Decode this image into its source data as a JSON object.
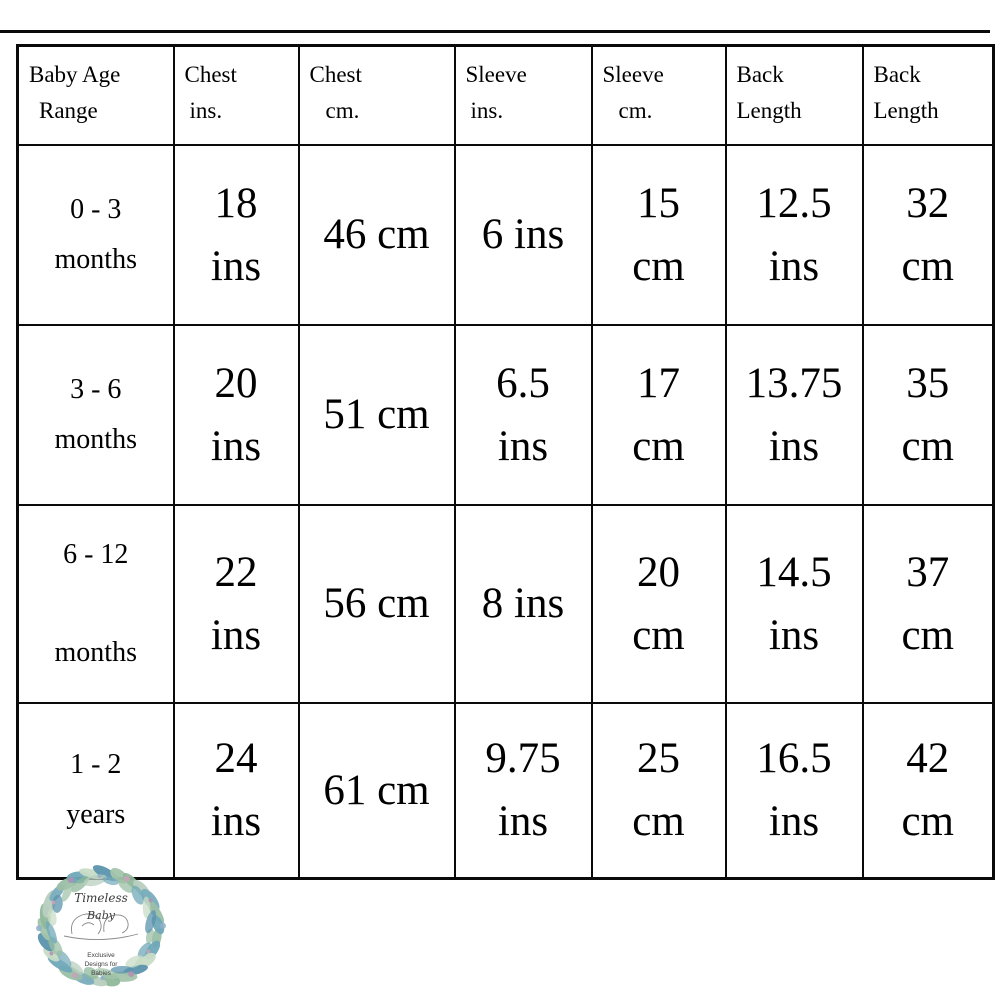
{
  "table": {
    "headers": [
      {
        "line1": "Baby Age",
        "line2": "Range"
      },
      {
        "line1": "Chest",
        "line2": "ins."
      },
      {
        "line1": "Chest",
        "line2": "cm."
      },
      {
        "line1": "Sleeve",
        "line2": "ins."
      },
      {
        "line1": "Sleeve",
        "line2": "cm."
      },
      {
        "line1": "Back",
        "line2": "Length"
      },
      {
        "line1": "Back",
        "line2": "Length"
      }
    ],
    "rows": [
      {
        "cells": [
          "0 - 3\nmonths",
          "18\nins",
          "46 cm",
          "6 ins",
          "15\ncm",
          "12.5\nins",
          "32\ncm"
        ]
      },
      {
        "cells": [
          "3 - 6\nmonths",
          "20\nins",
          "51 cm",
          "6.5\nins",
          "17\ncm",
          "13.75\nins",
          "35\ncm"
        ]
      },
      {
        "cells": [
          "6 - 12\nmonths",
          "22\nins",
          "56 cm",
          "8 ins",
          "20\ncm",
          "14.5\nins",
          "37\ncm"
        ]
      },
      {
        "cells": [
          "1 - 2\nyears",
          "24\nins",
          "61 cm",
          "9.75\nins",
          "25\ncm",
          "16.5\nins",
          "42\ncm"
        ]
      }
    ]
  },
  "chart_data": {
    "type": "table",
    "columns": [
      "Baby Age Range",
      "Chest ins.",
      "Chest cm.",
      "Sleeve ins.",
      "Sleeve cm.",
      "Back Length",
      "Back Length"
    ],
    "rows": [
      [
        "0 - 3 months",
        "18 ins",
        "46 cm",
        "6 ins",
        "15 cm",
        "12.5 ins",
        "32 cm"
      ],
      [
        "3 - 6 months",
        "20 ins",
        "51 cm",
        "6.5 ins",
        "17 cm",
        "13.75 ins",
        "35 cm"
      ],
      [
        "6 - 12 months",
        "22 ins",
        "56 cm",
        "8 ins",
        "20 cm",
        "14.5 ins",
        "37 cm"
      ],
      [
        "1 - 2 years",
        "24 ins",
        "61 cm",
        "9.75 ins",
        "25 cm",
        "16.5 ins",
        "42 cm"
      ]
    ]
  },
  "logo": {
    "brand_line1": "Timeless",
    "brand_line2": "Baby",
    "tagline_line1": "Exclusive",
    "tagline_line2": "Designs for",
    "tagline_line3": "Babies",
    "colors": {
      "palette": [
        "#9bbfa5",
        "#6fa8b8",
        "#c8dcc6",
        "#5b93ad",
        "#a3c4ab",
        "#8fb89a",
        "#b9cfc0",
        "#7aadbd"
      ],
      "berries": [
        "#c9a3bb",
        "#b38fb0",
        "#8fb0c9"
      ],
      "sketch": "#8a8a8a",
      "text": "#3c3c3c"
    }
  }
}
